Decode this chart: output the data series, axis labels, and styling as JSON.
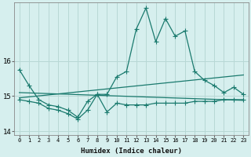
{
  "xlabel": "Humidex (Indice chaleur)",
  "background_color": "#d6efee",
  "grid_color": "#b8d8d5",
  "line_color": "#1a7a6e",
  "x_values": [
    0,
    1,
    2,
    3,
    4,
    5,
    6,
    7,
    8,
    9,
    10,
    11,
    12,
    13,
    14,
    15,
    16,
    17,
    18,
    19,
    20,
    21,
    22,
    23
  ],
  "series1": [
    15.75,
    15.3,
    14.9,
    14.75,
    14.7,
    14.6,
    14.4,
    14.85,
    15.05,
    15.05,
    15.55,
    15.7,
    16.9,
    17.5,
    16.55,
    17.2,
    16.7,
    16.85,
    15.7,
    15.45,
    15.3,
    15.1,
    15.25,
    15.05
  ],
  "series2": [
    14.9,
    14.85,
    14.8,
    14.65,
    14.6,
    14.5,
    14.35,
    14.6,
    15.05,
    14.55,
    14.8,
    14.75,
    14.75,
    14.75,
    14.8,
    14.8,
    14.8,
    14.8,
    14.85,
    14.85,
    14.85,
    14.9,
    14.9,
    14.9
  ],
  "trend1_x": [
    0,
    23
  ],
  "trend1_y": [
    14.95,
    15.6
  ],
  "trend2_x": [
    0,
    23
  ],
  "trend2_y": [
    15.1,
    14.88
  ],
  "ylim": [
    13.9,
    17.65
  ],
  "yticks": [
    14,
    15,
    16
  ],
  "xticks": [
    0,
    1,
    2,
    3,
    4,
    5,
    6,
    7,
    8,
    9,
    10,
    11,
    12,
    13,
    14,
    15,
    16,
    17,
    18,
    19,
    20,
    21,
    22,
    23
  ],
  "marker_size": 2.5,
  "line_width": 0.9
}
